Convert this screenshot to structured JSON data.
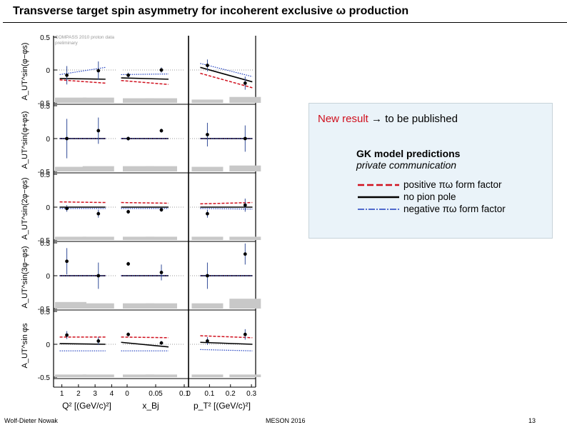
{
  "title": "Transverse target spin asymmetry for incoherent exclusive ω production",
  "callout": {
    "new_result": "New result",
    "arrow_text": "→ to be published",
    "model_title": "GK model predictions",
    "model_sub": "private communication",
    "legend": [
      {
        "label": "positive πω form factor",
        "color": "#d0101e",
        "style": "dashed"
      },
      {
        "label": "no pion pole",
        "color": "#000000",
        "style": "solid"
      },
      {
        "label": "negative πω form factor",
        "color": "#1f3fbf",
        "style": "dashdot"
      }
    ]
  },
  "footer": {
    "author": "Wolf-Dieter Nowak",
    "conference": "MESON 2016",
    "page": "13"
  },
  "chart_data": {
    "type": "scatter",
    "annotation": "COMPASS 2010 proton data preliminary",
    "ylim": [
      -0.5,
      0.5
    ],
    "yticks": [
      "0.5",
      "0",
      "-0.5"
    ],
    "ylabels": [
      "A_UT^sin(φ−φs)",
      "A_UT^sin(φ+φs)",
      "A_UT^sin(2φ−φs)",
      "A_UT^sin(3φ−φs)",
      "A_UT^sin φs"
    ],
    "columns": [
      {
        "xlabel": "Q² [(GeV/c)²]",
        "xlim": [
          0.5,
          4.5
        ],
        "ticks": [
          1,
          2,
          3,
          4
        ],
        "tick_labels": [
          "1",
          "2",
          "3",
          "4"
        ]
      },
      {
        "xlabel": "x_Bj",
        "xlim": [
          -0.01,
          0.105
        ],
        "ticks": [
          0,
          0.05,
          0.1
        ],
        "tick_labels": [
          "0",
          "0.05",
          "0.1"
        ]
      },
      {
        "xlabel": "p_T² [(GeV/c)²]",
        "xlim": [
          0,
          0.32
        ],
        "ticks": [
          0,
          0.1,
          0.2,
          0.3
        ],
        "tick_labels": [
          "0",
          "0.1",
          "0.2",
          "0.3"
        ]
      }
    ],
    "x": [
      [
        1.3,
        3.2
      ],
      [
        0.002,
        0.06
      ],
      [
        0.09,
        0.27
      ]
    ],
    "rows": [
      {
        "points": [
          [
            [
              -0.08,
              0.14
            ],
            [
              -0.01,
              0.14
            ]
          ],
          [
            [
              -0.08,
              0.04
            ],
            [
              0,
              0.04
            ]
          ],
          [
            [
              0.07,
              0.09
            ],
            [
              -0.2,
              0.1
            ]
          ]
        ],
        "syst": [
          [
            0.08,
            0.08
          ],
          [
            0.07,
            0.07
          ],
          [
            0.05,
            0.09
          ]
        ],
        "curves": {
          "pos": [
            [
              -0.15,
              -0.2
            ],
            [
              -0.16,
              -0.22
            ],
            [
              -0.05,
              -0.27
            ]
          ],
          "none": [
            [
              -0.13,
              -0.14
            ],
            [
              -0.12,
              -0.14
            ],
            [
              0.04,
              -0.18
            ]
          ],
          "neg": [
            [
              -0.07,
              0.04
            ],
            [
              -0.07,
              -0.06
            ],
            [
              0.1,
              -0.1
            ]
          ]
        }
      },
      {
        "points": [
          [
            [
              0,
              0.3
            ],
            [
              0.12,
              0.2
            ]
          ],
          [
            [
              0,
              0.03
            ],
            [
              0.12,
              0.03
            ]
          ],
          [
            [
              0.06,
              0.18
            ],
            [
              0,
              0.2
            ]
          ]
        ],
        "syst": [
          [
            0.07,
            0.08
          ],
          [
            0.08,
            0.08
          ],
          [
            0.07,
            0.09
          ]
        ],
        "curves": {
          "pos": [
            [
              0,
              0
            ],
            [
              0,
              0
            ],
            [
              0,
              0
            ]
          ],
          "none": [
            [
              0,
              0
            ],
            [
              0,
              0
            ],
            [
              0,
              0
            ]
          ],
          "neg": [
            [
              0,
              0
            ],
            [
              0,
              0
            ],
            [
              0,
              0
            ]
          ]
        }
      },
      {
        "points": [
          [
            [
              -0.02,
              0.05
            ],
            [
              -0.1,
              0.06
            ]
          ],
          [
            [
              -0.07,
              0.03
            ],
            [
              -0.04,
              0.03
            ]
          ],
          [
            [
              -0.1,
              0.06
            ],
            [
              0.03,
              0.1
            ]
          ]
        ],
        "syst": [
          [
            0.05,
            0.05
          ],
          [
            0.05,
            0.05
          ],
          [
            0.05,
            0.05
          ]
        ],
        "curves": {
          "pos": [
            [
              0.08,
              0.07
            ],
            [
              0.07,
              0.06
            ],
            [
              0.05,
              0.07
            ]
          ],
          "none": [
            [
              0,
              0
            ],
            [
              0,
              0
            ],
            [
              0,
              0
            ]
          ],
          "neg": [
            [
              -0.02,
              -0.02
            ],
            [
              -0.02,
              -0.02
            ],
            [
              -0.02,
              -0.03
            ]
          ]
        }
      },
      {
        "points": [
          [
            [
              0.22,
              0.2
            ],
            [
              0,
              0.2
            ]
          ],
          [
            [
              0.18,
              0.03
            ],
            [
              0.05,
              0.12
            ]
          ],
          [
            [
              0,
              0.2
            ],
            [
              0.33,
              0.16
            ]
          ]
        ],
        "syst": [
          [
            0.1,
            0.08
          ],
          [
            0.08,
            0.08
          ],
          [
            0.08,
            0.15
          ]
        ],
        "curves": {
          "pos": [
            [
              0,
              0
            ],
            [
              0,
              0
            ],
            [
              0,
              0
            ]
          ],
          "none": [
            [
              0,
              0
            ],
            [
              0,
              0
            ],
            [
              0,
              0
            ]
          ],
          "neg": [
            [
              0,
              0
            ],
            [
              0,
              0
            ],
            [
              0,
              0
            ]
          ]
        }
      },
      {
        "points": [
          [
            [
              0.14,
              0.06
            ],
            [
              0.05,
              0.06
            ]
          ],
          [
            [
              0.15,
              0.03
            ],
            [
              0.02,
              0.03
            ]
          ],
          [
            [
              0.05,
              0.06
            ],
            [
              0.15,
              0.08
            ]
          ]
        ],
        "syst": [
          [
            0.04,
            0.04
          ],
          [
            0.04,
            0.04
          ],
          [
            0.04,
            0.04
          ]
        ],
        "curves": {
          "pos": [
            [
              0.11,
              0.11
            ],
            [
              0.11,
              0.1
            ],
            [
              0.13,
              0.1
            ]
          ],
          "none": [
            [
              0.01,
              0
            ],
            [
              0.03,
              -0.04
            ],
            [
              0.03,
              0
            ]
          ],
          "neg": [
            [
              -0.1,
              -0.1
            ],
            [
              -0.1,
              -0.1
            ],
            [
              -0.08,
              -0.1
            ]
          ]
        }
      }
    ]
  }
}
